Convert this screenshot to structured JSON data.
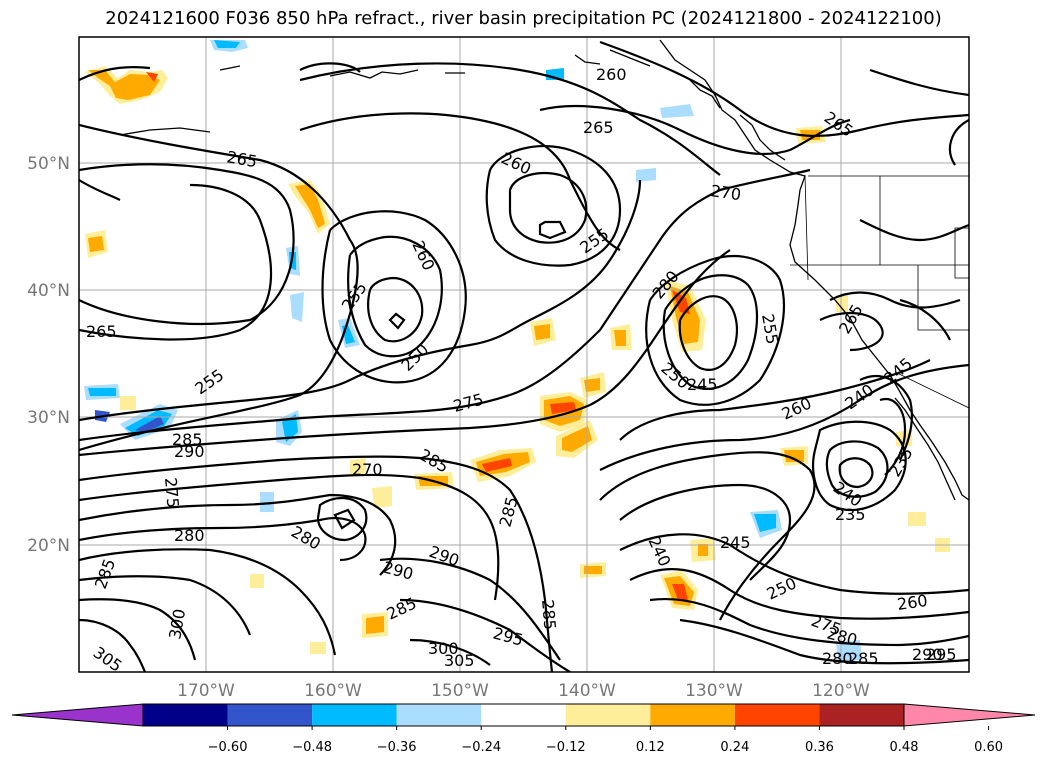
{
  "title": "2024121600 F036 850 hPa refract., river basin precipitation PC (2024121800 - 2024122100)",
  "map": {
    "lat_labels": [
      "50°N",
      "40°N",
      "30°N",
      "20°N"
    ],
    "lon_labels": [
      "170°W",
      "160°W",
      "150°W",
      "140°W",
      "130°W",
      "120°W"
    ],
    "contour_labels": [
      "260",
      "265",
      "265",
      "265",
      "260",
      "270",
      "265",
      "265",
      "255",
      "260",
      "255",
      "250",
      "280",
      "255",
      "265",
      "255",
      "275",
      "280",
      "245",
      "250",
      "260",
      "240",
      "245",
      "285",
      "290",
      "285",
      "235",
      "275",
      "280",
      "240",
      "235",
      "285",
      "270",
      "280",
      "285",
      "290",
      "290",
      "285",
      "245",
      "240",
      "300",
      "295",
      "285",
      "250",
      "260",
      "275",
      "280",
      "280",
      "285",
      "290",
      "295",
      "305",
      "300",
      "300",
      "305",
      "265"
    ]
  },
  "colorbar": {
    "colors": [
      "#9933cc",
      "#000088",
      "#3355cc",
      "#00bbff",
      "#aaddff",
      "#ffffff",
      "#ffee99",
      "#ffaa00",
      "#ff4400",
      "#aa2222",
      "#ff88aa"
    ],
    "ticks": [
      "−0.60",
      "−0.48",
      "−0.36",
      "−0.24",
      "−0.12",
      "0.12",
      "0.24",
      "0.36",
      "0.48",
      "0.60"
    ]
  }
}
